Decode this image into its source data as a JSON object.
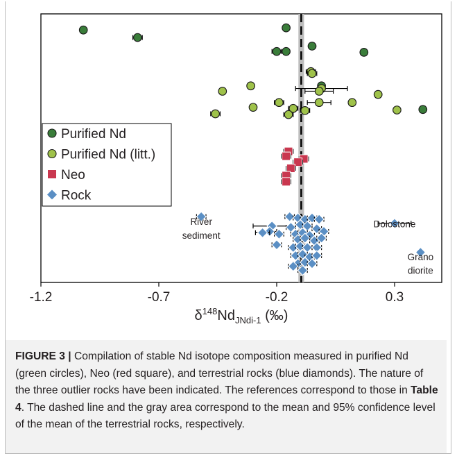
{
  "chart_data": {
    "type": "scatter",
    "xlabel": "δ148NdJNdi-1 (‰)",
    "xlabel_parts": {
      "delta": "δ",
      "sup": "148",
      "nd": "Nd",
      "sub": "JNdi-1",
      "unit": " (‰)"
    },
    "xlim": [
      -1.2,
      0.5
    ],
    "xticks": [
      "-1.2",
      "-0.7",
      "-0.2",
      "0.3"
    ],
    "xtick_values": [
      -1.2,
      -0.7,
      -0.2,
      0.3
    ],
    "mean_line_x": -0.096,
    "confidence_band": [
      -0.108,
      -0.084
    ],
    "colors": {
      "purified": "#3a7d3a",
      "purified_litt": "#9fc24a",
      "neo": "#c9374f",
      "rock": "#5b8fc4",
      "band": "#bdbdbd"
    },
    "legend": [
      {
        "label": "Purified Nd",
        "marker": "circle",
        "color": "#3a7d3a"
      },
      {
        "label": "Purified Nd (litt.)",
        "marker": "circle",
        "color": "#9fc24a"
      },
      {
        "label": "Neo",
        "marker": "square",
        "color": "#c9374f"
      },
      {
        "label": "Rock",
        "marker": "diamond",
        "color": "#5b8fc4"
      }
    ],
    "annotations": [
      {
        "text": "Dolostone",
        "x": 0.3,
        "y": 0.205
      },
      {
        "text": "River",
        "x": -0.52,
        "y": 0.215
      },
      {
        "text": "sediment",
        "x": -0.52,
        "y": 0.163
      },
      {
        "text": "Grano",
        "x": 0.41,
        "y": 0.083
      },
      {
        "text": "diorite",
        "x": 0.41,
        "y": 0.032
      }
    ],
    "series": [
      {
        "name": "Purified Nd",
        "points": [
          {
            "x": -1.02,
            "y": 0.94,
            "err": 0.012
          },
          {
            "x": -0.79,
            "y": 0.912,
            "err": 0.02
          },
          {
            "x": -0.16,
            "y": 0.948,
            "err": 0.012
          },
          {
            "x": -0.2,
            "y": 0.86,
            "err": 0.02
          },
          {
            "x": -0.16,
            "y": 0.86,
            "err": 0.005
          },
          {
            "x": -0.05,
            "y": 0.88,
            "err": 0.005
          },
          {
            "x": 0.17,
            "y": 0.857,
            "err": 0.005
          },
          {
            "x": -0.01,
            "y": 0.732,
            "err": 0.01
          },
          {
            "x": 0.42,
            "y": 0.644,
            "err": 0.01
          }
        ]
      },
      {
        "name": "Purified Nd (litt.)",
        "points": [
          {
            "x": -0.055,
            "y": 0.785,
            "err": 0.02
          },
          {
            "x": -0.05,
            "y": 0.778,
            "err": 0.02
          },
          {
            "x": -0.31,
            "y": 0.732,
            "err": 0.005
          },
          {
            "x": -0.01,
            "y": 0.722,
            "err": 0.11
          },
          {
            "x": -0.43,
            "y": 0.712,
            "err": 0.01
          },
          {
            "x": -0.02,
            "y": 0.712,
            "err": 0.06
          },
          {
            "x": 0.23,
            "y": 0.7,
            "err": 0.01
          },
          {
            "x": -0.19,
            "y": 0.67,
            "err": 0.02
          },
          {
            "x": -0.02,
            "y": 0.67,
            "err": 0.05
          },
          {
            "x": 0.12,
            "y": 0.67,
            "err": 0.01
          },
          {
            "x": -0.3,
            "y": 0.652,
            "err": 0.005
          },
          {
            "x": -0.13,
            "y": 0.648,
            "err": 0.02
          },
          {
            "x": 0.31,
            "y": 0.642,
            "err": 0.01
          },
          {
            "x": -0.46,
            "y": 0.628,
            "err": 0.02
          },
          {
            "x": -0.15,
            "y": 0.625,
            "err": 0.02
          },
          {
            "x": -0.08,
            "y": 0.64,
            "err": 0.02
          }
        ]
      },
      {
        "name": "Neo",
        "points": [
          {
            "x": -0.15,
            "y": 0.488,
            "err": 0.02
          },
          {
            "x": -0.16,
            "y": 0.47,
            "err": 0.02
          },
          {
            "x": -0.085,
            "y": 0.46,
            "err": 0.02
          },
          {
            "x": -0.11,
            "y": 0.448,
            "err": 0.02
          },
          {
            "x": -0.14,
            "y": 0.425,
            "err": 0.02
          },
          {
            "x": -0.16,
            "y": 0.398,
            "err": 0.02
          },
          {
            "x": -0.16,
            "y": 0.375,
            "err": 0.02
          }
        ]
      },
      {
        "name": "Rock",
        "points": [
          {
            "x": -0.52,
            "y": 0.245,
            "err": 0.02
          },
          {
            "x": 0.3,
            "y": 0.22,
            "err": 0.07
          },
          {
            "x": 0.41,
            "y": 0.112,
            "err": 0.01
          },
          {
            "x": -0.22,
            "y": 0.21,
            "err": 0.08
          },
          {
            "x": -0.23,
            "y": 0.19,
            "err": 0.03
          },
          {
            "x": -0.26,
            "y": 0.185,
            "err": 0.03
          },
          {
            "x": -0.19,
            "y": 0.18,
            "err": 0.02
          },
          {
            "x": -0.2,
            "y": 0.14,
            "err": 0.02
          },
          {
            "x": -0.145,
            "y": 0.245,
            "err": 0.02
          },
          {
            "x": -0.11,
            "y": 0.24,
            "err": 0.02
          },
          {
            "x": -0.08,
            "y": 0.235,
            "err": 0.02
          },
          {
            "x": -0.05,
            "y": 0.24,
            "err": 0.02
          },
          {
            "x": -0.02,
            "y": 0.235,
            "err": 0.02
          },
          {
            "x": -0.14,
            "y": 0.205,
            "err": 0.02
          },
          {
            "x": -0.1,
            "y": 0.215,
            "err": 0.02
          },
          {
            "x": -0.07,
            "y": 0.21,
            "err": 0.02
          },
          {
            "x": -0.03,
            "y": 0.2,
            "err": 0.02
          },
          {
            "x": -0.12,
            "y": 0.18,
            "err": 0.02
          },
          {
            "x": -0.09,
            "y": 0.185,
            "err": 0.02
          },
          {
            "x": -0.06,
            "y": 0.175,
            "err": 0.02
          },
          {
            "x": 0.0,
            "y": 0.19,
            "err": 0.02
          },
          {
            "x": -0.11,
            "y": 0.16,
            "err": 0.02
          },
          {
            "x": -0.08,
            "y": 0.165,
            "err": 0.02
          },
          {
            "x": -0.04,
            "y": 0.155,
            "err": 0.02
          },
          {
            "x": -0.01,
            "y": 0.165,
            "err": 0.02
          },
          {
            "x": -0.13,
            "y": 0.13,
            "err": 0.02
          },
          {
            "x": -0.1,
            "y": 0.135,
            "err": 0.02
          },
          {
            "x": -0.07,
            "y": 0.13,
            "err": 0.02
          },
          {
            "x": -0.03,
            "y": 0.13,
            "err": 0.02
          },
          {
            "x": -0.12,
            "y": 0.1,
            "err": 0.02
          },
          {
            "x": -0.09,
            "y": 0.105,
            "err": 0.02
          },
          {
            "x": -0.06,
            "y": 0.095,
            "err": 0.02
          },
          {
            "x": -0.03,
            "y": 0.1,
            "err": 0.02
          },
          {
            "x": -0.11,
            "y": 0.07,
            "err": 0.02
          },
          {
            "x": -0.08,
            "y": 0.075,
            "err": 0.02
          },
          {
            "x": -0.05,
            "y": 0.07,
            "err": 0.02
          },
          {
            "x": -0.09,
            "y": 0.045,
            "err": 0.02
          },
          {
            "x": -0.13,
            "y": 0.06,
            "err": 0.02
          }
        ]
      }
    ]
  },
  "caption": {
    "label": "FIGURE 3 |",
    "text_1": " Compilation of stable Nd isotope composition measured in purified Nd (green circles), Neo (red square), and terrestrial rocks (blue diamonds). The nature of the three outlier rocks have been indicated. The references correspond to those in ",
    "table_ref": "Table 4",
    "text_2": ". The dashed line and the gray area correspond to the mean and 95% confidence level of the mean of the terrestrial rocks, respectively."
  }
}
